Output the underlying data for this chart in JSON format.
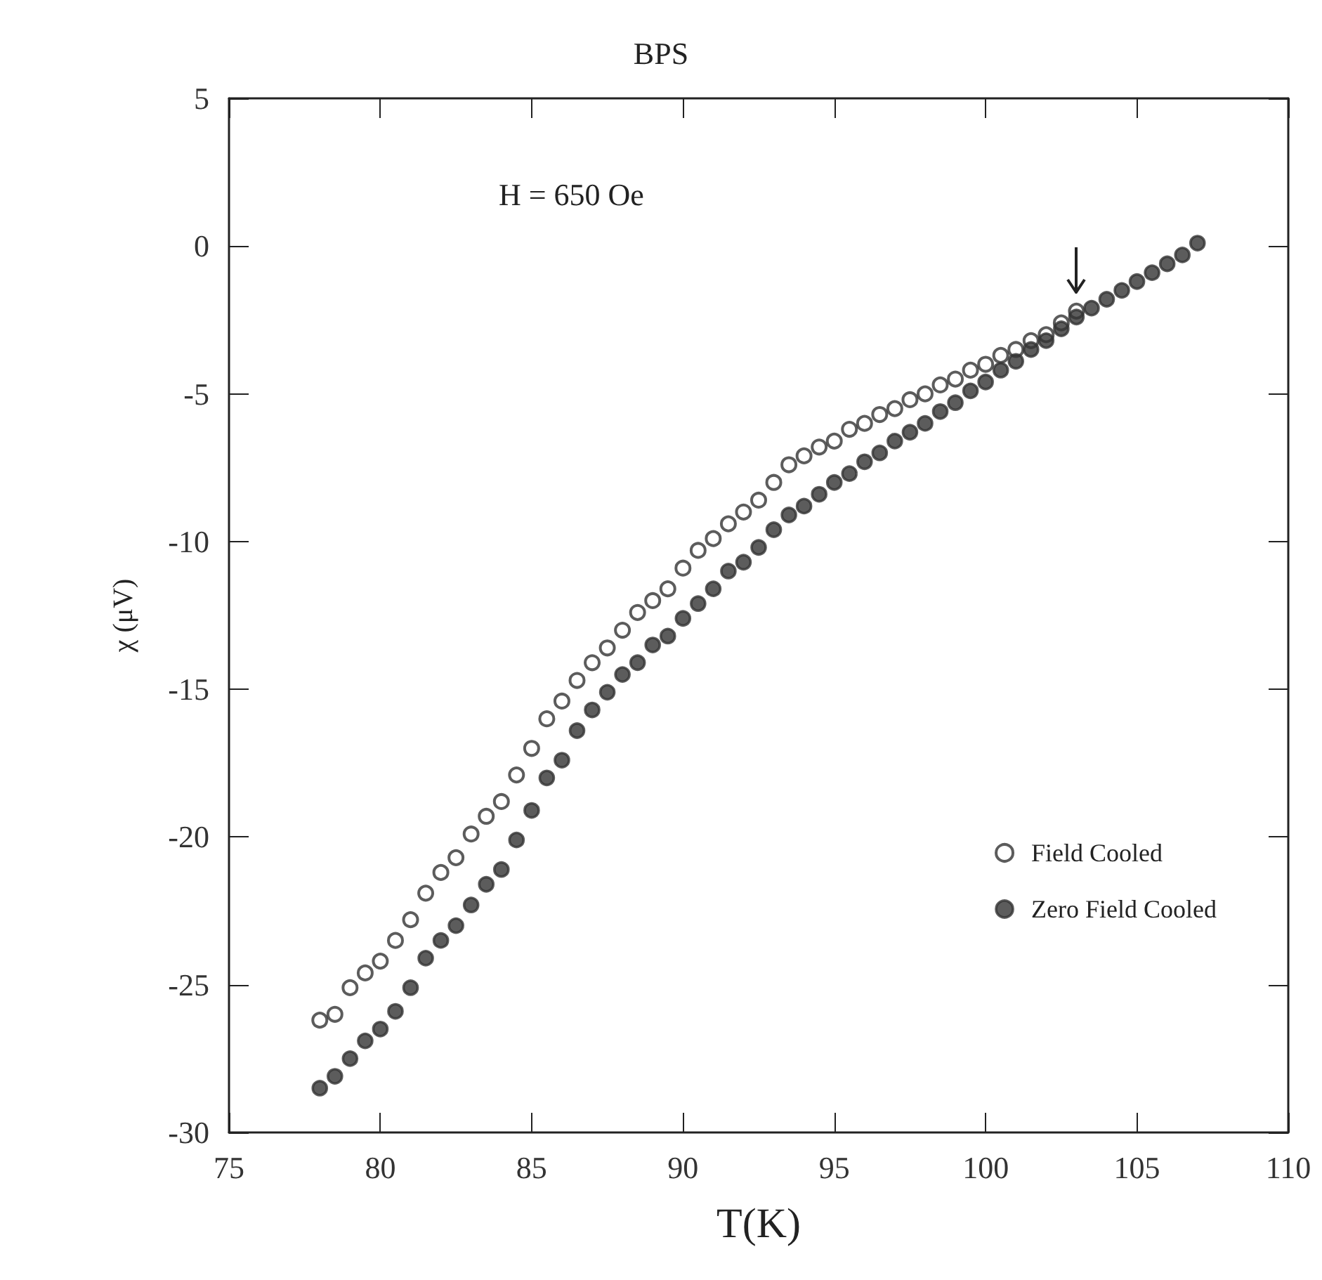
{
  "chart_data": {
    "type": "scatter",
    "title": "BPS",
    "xlabel": "T(K)",
    "ylabel": "χ (μV)",
    "annotations": [
      "H = 650 Oe"
    ],
    "xlim": [
      75,
      110
    ],
    "xticks": [
      75,
      80,
      85,
      90,
      95,
      100,
      105,
      110
    ],
    "ylim": [
      -30,
      5
    ],
    "yticks": [
      -30,
      -25,
      -20,
      -15,
      -10,
      -5,
      0,
      5
    ],
    "grid": false,
    "legend": "bottom right",
    "marker": "circle",
    "series": [
      {
        "name": "Field Cooled",
        "color": "#333333",
        "marker": "open circle",
        "x": [
          78,
          78.5,
          79,
          79.5,
          80,
          80.5,
          81,
          81.5,
          82,
          82.5,
          83,
          83.5,
          84,
          84.5,
          85,
          85.5,
          86,
          86.5,
          87,
          87.5,
          88,
          88.5,
          89,
          89.5,
          90,
          90.5,
          91,
          91.5,
          92,
          92.5,
          93,
          93.5,
          94,
          94.5,
          95,
          95.5,
          96,
          96.5,
          97,
          97.5,
          98,
          98.5,
          99,
          99.5,
          100,
          100.5,
          101,
          101.5,
          102,
          102.5,
          103
        ],
        "values": [
          -26.2,
          -26.0,
          -25.1,
          -24.6,
          -24.2,
          -23.5,
          -22.8,
          -21.9,
          -21.2,
          -20.7,
          -19.9,
          -19.3,
          -18.8,
          -17.9,
          -17.0,
          -16.0,
          -15.4,
          -14.7,
          -14.1,
          -13.6,
          -13.0,
          -12.4,
          -12.0,
          -11.6,
          -10.9,
          -10.3,
          -9.9,
          -9.4,
          -9.0,
          -8.6,
          -8.0,
          -7.4,
          -7.1,
          -6.8,
          -6.6,
          -6.2,
          -6.0,
          -5.7,
          -5.5,
          -5.2,
          -5.0,
          -4.7,
          -4.5,
          -4.2,
          -4.0,
          -3.7,
          -3.5,
          -3.2,
          -3.0,
          -2.6,
          -2.2
        ]
      },
      {
        "name": "Zero Field Cooled",
        "color": "#333333",
        "x": [
          78,
          78.5,
          79,
          79.5,
          80,
          80.5,
          81,
          81.5,
          82,
          82.5,
          83,
          83.5,
          84,
          84.5,
          85,
          85.5,
          86,
          86.5,
          87,
          87.5,
          88,
          88.5,
          89,
          89.5,
          90,
          90.5,
          91,
          91.5,
          92,
          92.5,
          93,
          93.5,
          94,
          94.5,
          95,
          95.5,
          96,
          96.5,
          97,
          97.5,
          98,
          98.5,
          99,
          99.5,
          100,
          100.5,
          101,
          101.5,
          102,
          102.5,
          103,
          103.5,
          104,
          104.5,
          105,
          105.5,
          106,
          106.5,
          107
        ],
        "values": [
          -28.5,
          -28.1,
          -27.5,
          -26.9,
          -26.5,
          -25.9,
          -25.1,
          -24.1,
          -23.5,
          -23.0,
          -22.3,
          -21.6,
          -21.1,
          -20.1,
          -19.1,
          -18.0,
          -17.4,
          -16.4,
          -15.7,
          -15.1,
          -14.5,
          -14.1,
          -13.5,
          -13.2,
          -12.6,
          -12.1,
          -11.6,
          -11.0,
          -10.7,
          -10.2,
          -9.6,
          -9.1,
          -8.8,
          -8.4,
          -8.0,
          -7.7,
          -7.3,
          -7.0,
          -6.6,
          -6.3,
          -6.0,
          -5.6,
          -5.3,
          -4.9,
          -4.6,
          -4.2,
          -3.9,
          -3.5,
          -3.2,
          -2.8,
          -2.4,
          -2.1,
          -1.8,
          -1.5,
          -1.2,
          -0.9,
          -0.6,
          -0.3,
          0.1
        ]
      }
    ]
  }
}
